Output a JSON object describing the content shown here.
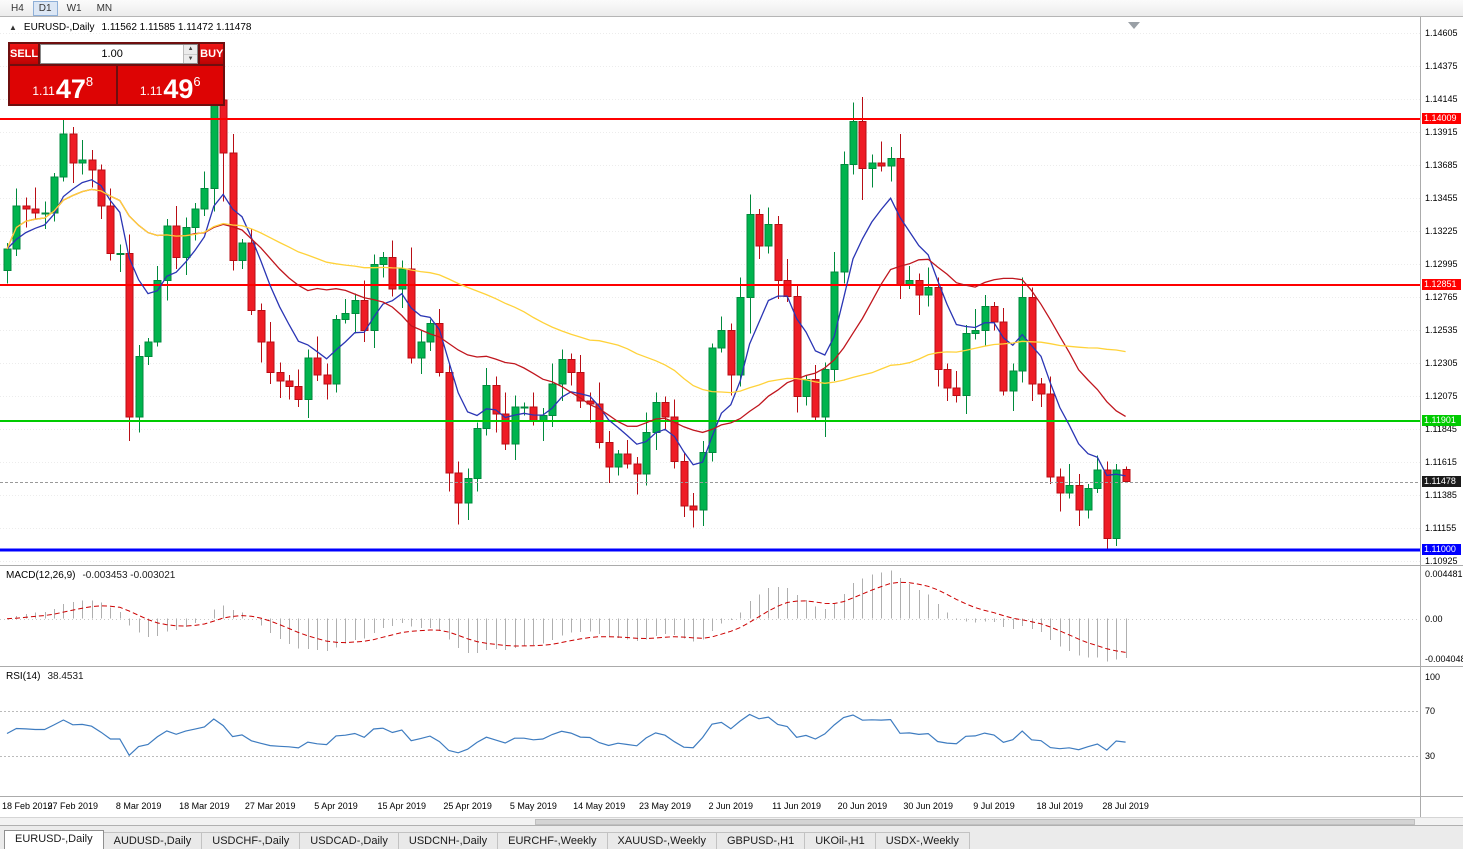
{
  "toolbar": {
    "buttons": [
      "H4",
      "D1",
      "W1",
      "MN"
    ],
    "active": "D1"
  },
  "chart_header": {
    "collapse_icon": "▲",
    "symbol_title": "EURUSD-,Daily",
    "ohlc": "1.11562 1.11585 1.11472 1.11478"
  },
  "one_click": {
    "sell_label": "SELL",
    "buy_label": "BUY",
    "volume": "1.00",
    "spin_up_icon": "▲",
    "spin_down_icon": "▼",
    "sell_price_small": "1.11",
    "sell_price_big": "47",
    "sell_price_sup": "8",
    "buy_price_small": "1.11",
    "buy_price_big": "49",
    "buy_price_sup": "6",
    "down_color": "#DD0404"
  },
  "price_scale": {
    "labels": [
      "1.14605",
      "1.14375",
      "1.14145",
      "1.13915",
      "1.13685",
      "1.13455",
      "1.13225",
      "1.12995",
      "1.12765",
      "1.12535",
      "1.12305",
      "1.12075",
      "1.11845",
      "1.11615",
      "1.11385",
      "1.11155",
      "1.10925"
    ]
  },
  "levels": [
    {
      "label": "1.14009",
      "price": 1.14009,
      "color": "#FF0000",
      "text_color": "#FFFFFF",
      "thickness": 2
    },
    {
      "label": "1.12851",
      "price": 1.12851,
      "color": "#FF0000",
      "text_color": "#FFFFFF",
      "thickness": 2
    },
    {
      "label": "1.11901",
      "price": 1.11901,
      "color": "#00CB00",
      "text_color": "#FFFFFF",
      "thickness": 2
    },
    {
      "label": "1.11000",
      "price": 1.11,
      "color": "#0000FF",
      "text_color": "#FFFFFF",
      "thickness": 3
    }
  ],
  "bid_tag": {
    "label": "1.11478",
    "price": 1.11478,
    "bg": "#1A1A1A",
    "text_color": "#FFFFFF"
  },
  "macd": {
    "name_label": "MACD(12,26,9)",
    "values_label": "-0.003453 -0.003021",
    "scale_top": "0.004481",
    "scale_zero": "0.00",
    "scale_bottom": "-0.004048",
    "histogram_color": "#AFAFAF",
    "signal_color": "#CC0000",
    "fast": 12,
    "slow": 26,
    "signal": 9
  },
  "rsi": {
    "name_label": "RSI(14)",
    "value_label": "38.4531",
    "period": 14,
    "levels_text": [
      "100",
      "70",
      "30"
    ],
    "line_color": "#3E7CC0"
  },
  "tabs": {
    "items": [
      "EURUSD-,Daily",
      "AUDUSD-,Daily",
      "USDCHF-,Daily",
      "USDCAD-,Daily",
      "USDCNH-,Daily",
      "EURCHF-,Weekly",
      "XAUUSD-,Weekly",
      "GBPUSD-,H1",
      "UKOil-,H1",
      "USDX-,Weekly"
    ],
    "active_index": 0
  },
  "chart_data": {
    "type": "candlestick",
    "title": "EURUSD-,Daily",
    "price_max": 1.14717,
    "price_min": 1.10897,
    "bull_color": "#00B44E",
    "bull_border": "#008A3C",
    "bear_color": "#EE1C25",
    "bear_border": "#B80E15",
    "ma_lines": [
      {
        "label": "MA fast",
        "method": "ema",
        "period": 8,
        "color": "#2A35B4"
      },
      {
        "label": "MA medium",
        "method": "sma",
        "period": 20,
        "color": "#C0161E"
      },
      {
        "label": "MA slow",
        "method": "sma",
        "period": 50,
        "color": "#FFD23A"
      }
    ],
    "x_labels": [
      "18 Feb 2019",
      "27 Feb 2019",
      "8 Mar 2019",
      "18 Mar 2019",
      "27 Mar 2019",
      "5 Apr 2019",
      "15 Apr 2019",
      "25 Apr 2019",
      "5 May 2019",
      "14 May 2019",
      "23 May 2019",
      "2 Jun 2019",
      "11 Jun 2019",
      "20 Jun 2019",
      "30 Jun 2019",
      "9 Jul 2019",
      "18 Jul 2019",
      "28 Jul 2019"
    ],
    "x_label_step": 7,
    "candles": [
      [
        1.1295,
        1.1314,
        1.1286,
        1.131
      ],
      [
        1.131,
        1.1352,
        1.1305,
        1.134
      ],
      [
        1.134,
        1.1346,
        1.1325,
        1.1338
      ],
      [
        1.1338,
        1.1353,
        1.1331,
        1.1335
      ],
      [
        1.1335,
        1.1343,
        1.1324,
        1.1335
      ],
      [
        1.1335,
        1.1363,
        1.1329,
        1.136
      ],
      [
        1.136,
        1.14,
        1.1357,
        1.139
      ],
      [
        1.139,
        1.1395,
        1.1356,
        1.137
      ],
      [
        1.137,
        1.1386,
        1.1362,
        1.1372
      ],
      [
        1.1372,
        1.1379,
        1.1353,
        1.1365
      ],
      [
        1.1365,
        1.1369,
        1.1331,
        1.134
      ],
      [
        1.134,
        1.1352,
        1.1302,
        1.1307
      ],
      [
        1.1307,
        1.1313,
        1.1294,
        1.1307
      ],
      [
        1.1307,
        1.132,
        1.1176,
        1.1193
      ],
      [
        1.1193,
        1.1243,
        1.1182,
        1.1235
      ],
      [
        1.1235,
        1.1248,
        1.1229,
        1.1245
      ],
      [
        1.1245,
        1.1298,
        1.1242,
        1.1288
      ],
      [
        1.1288,
        1.1331,
        1.1274,
        1.1326
      ],
      [
        1.1326,
        1.134,
        1.1296,
        1.1304
      ],
      [
        1.1304,
        1.1332,
        1.1292,
        1.1325
      ],
      [
        1.1325,
        1.1342,
        1.1316,
        1.1338
      ],
      [
        1.1338,
        1.1364,
        1.1333,
        1.1352
      ],
      [
        1.1352,
        1.1425,
        1.1336,
        1.1414
      ],
      [
        1.1414,
        1.142,
        1.1343,
        1.1377
      ],
      [
        1.1377,
        1.139,
        1.1295,
        1.1302
      ],
      [
        1.1302,
        1.1317,
        1.1296,
        1.1314
      ],
      [
        1.1314,
        1.1324,
        1.1264,
        1.1267
      ],
      [
        1.1267,
        1.1272,
        1.1231,
        1.1245
      ],
      [
        1.1245,
        1.1259,
        1.1216,
        1.1224
      ],
      [
        1.1224,
        1.1231,
        1.1206,
        1.1218
      ],
      [
        1.1218,
        1.1222,
        1.1205,
        1.1214
      ],
      [
        1.1214,
        1.1226,
        1.12,
        1.1205
      ],
      [
        1.1205,
        1.124,
        1.1192,
        1.1234
      ],
      [
        1.1234,
        1.1249,
        1.1218,
        1.1222
      ],
      [
        1.1222,
        1.123,
        1.1205,
        1.1216
      ],
      [
        1.1216,
        1.1264,
        1.121,
        1.1261
      ],
      [
        1.1261,
        1.1275,
        1.1258,
        1.1265
      ],
      [
        1.1265,
        1.1279,
        1.1251,
        1.1274
      ],
      [
        1.1274,
        1.1288,
        1.1245,
        1.1253
      ],
      [
        1.1253,
        1.1306,
        1.1241,
        1.1299
      ],
      [
        1.1299,
        1.1308,
        1.129,
        1.1304
      ],
      [
        1.1304,
        1.1316,
        1.1277,
        1.1282
      ],
      [
        1.1282,
        1.1302,
        1.1269,
        1.1296
      ],
      [
        1.1296,
        1.1311,
        1.123,
        1.1234
      ],
      [
        1.1234,
        1.1253,
        1.1223,
        1.1245
      ],
      [
        1.1245,
        1.1261,
        1.1239,
        1.1258
      ],
      [
        1.1258,
        1.1268,
        1.1221,
        1.1224
      ],
      [
        1.1224,
        1.123,
        1.1141,
        1.1154
      ],
      [
        1.1154,
        1.1162,
        1.1118,
        1.1133
      ],
      [
        1.1133,
        1.1157,
        1.1121,
        1.115
      ],
      [
        1.115,
        1.1189,
        1.1141,
        1.1185
      ],
      [
        1.1185,
        1.1227,
        1.118,
        1.1215
      ],
      [
        1.1215,
        1.1221,
        1.1182,
        1.1195
      ],
      [
        1.1195,
        1.121,
        1.117,
        1.1174
      ],
      [
        1.1174,
        1.1208,
        1.1163,
        1.12
      ],
      [
        1.12,
        1.1203,
        1.1194,
        1.12
      ],
      [
        1.12,
        1.121,
        1.1187,
        1.119
      ],
      [
        1.119,
        1.1199,
        1.1176,
        1.1194
      ],
      [
        1.1194,
        1.123,
        1.1186,
        1.1216
      ],
      [
        1.1216,
        1.124,
        1.1204,
        1.1233
      ],
      [
        1.1233,
        1.1237,
        1.1215,
        1.1224
      ],
      [
        1.1224,
        1.1236,
        1.1199,
        1.1204
      ],
      [
        1.1204,
        1.121,
        1.1189,
        1.1202
      ],
      [
        1.1202,
        1.1217,
        1.1171,
        1.1175
      ],
      [
        1.1175,
        1.1183,
        1.1147,
        1.1158
      ],
      [
        1.1158,
        1.117,
        1.1152,
        1.1167
      ],
      [
        1.1167,
        1.1177,
        1.1157,
        1.116
      ],
      [
        1.116,
        1.1165,
        1.1139,
        1.1153
      ],
      [
        1.1153,
        1.1196,
        1.1145,
        1.1182
      ],
      [
        1.1182,
        1.121,
        1.117,
        1.1203
      ],
      [
        1.1203,
        1.1207,
        1.1184,
        1.1193
      ],
      [
        1.1193,
        1.1205,
        1.1157,
        1.1162
      ],
      [
        1.1162,
        1.1168,
        1.1123,
        1.1131
      ],
      [
        1.1131,
        1.114,
        1.1116,
        1.1128
      ],
      [
        1.1128,
        1.1176,
        1.1117,
        1.1168
      ],
      [
        1.1168,
        1.1244,
        1.1162,
        1.1241
      ],
      [
        1.1241,
        1.1263,
        1.1238,
        1.1253
      ],
      [
        1.1253,
        1.1258,
        1.1208,
        1.1222
      ],
      [
        1.1222,
        1.129,
        1.1214,
        1.1276
      ],
      [
        1.1276,
        1.1348,
        1.1251,
        1.1334
      ],
      [
        1.1334,
        1.1338,
        1.1303,
        1.1312
      ],
      [
        1.1312,
        1.1339,
        1.1307,
        1.1327
      ],
      [
        1.1327,
        1.1333,
        1.1275,
        1.1288
      ],
      [
        1.1288,
        1.1303,
        1.1273,
        1.1277
      ],
      [
        1.1277,
        1.1285,
        1.1196,
        1.1207
      ],
      [
        1.1207,
        1.1222,
        1.1201,
        1.1219
      ],
      [
        1.1219,
        1.1229,
        1.119,
        1.1193
      ],
      [
        1.1193,
        1.1231,
        1.1179,
        1.1226
      ],
      [
        1.1226,
        1.1308,
        1.1218,
        1.1294
      ],
      [
        1.1294,
        1.1378,
        1.1286,
        1.1369
      ],
      [
        1.1369,
        1.1412,
        1.1362,
        1.1399
      ],
      [
        1.1399,
        1.1416,
        1.1344,
        1.1366
      ],
      [
        1.1366,
        1.1376,
        1.1353,
        1.137
      ],
      [
        1.137,
        1.1385,
        1.1364,
        1.1368
      ],
      [
        1.1368,
        1.1381,
        1.1357,
        1.1373
      ],
      [
        1.1373,
        1.139,
        1.1275,
        1.1285
      ],
      [
        1.1285,
        1.1298,
        1.1282,
        1.1288
      ],
      [
        1.1288,
        1.1293,
        1.1264,
        1.1278
      ],
      [
        1.1278,
        1.1297,
        1.127,
        1.1283
      ],
      [
        1.1283,
        1.129,
        1.1214,
        1.1226
      ],
      [
        1.1226,
        1.123,
        1.1204,
        1.1213
      ],
      [
        1.1213,
        1.1225,
        1.1203,
        1.1208
      ],
      [
        1.1208,
        1.1257,
        1.1195,
        1.1251
      ],
      [
        1.1251,
        1.1268,
        1.1247,
        1.1253
      ],
      [
        1.1253,
        1.1278,
        1.1242,
        1.127
      ],
      [
        1.127,
        1.1273,
        1.1253,
        1.1259
      ],
      [
        1.1259,
        1.1269,
        1.1208,
        1.1211
      ],
      [
        1.1211,
        1.123,
        1.1197,
        1.1225
      ],
      [
        1.1225,
        1.129,
        1.1217,
        1.1276
      ],
      [
        1.1276,
        1.1283,
        1.1204,
        1.1216
      ],
      [
        1.1216,
        1.122,
        1.12,
        1.1209
      ],
      [
        1.1209,
        1.1221,
        1.1146,
        1.1151
      ],
      [
        1.1151,
        1.1157,
        1.1127,
        1.114
      ],
      [
        1.114,
        1.116,
        1.1136,
        1.1145
      ],
      [
        1.1145,
        1.1153,
        1.1117,
        1.1128
      ],
      [
        1.1128,
        1.1146,
        1.1122,
        1.1143
      ],
      [
        1.1143,
        1.1166,
        1.114,
        1.1156
      ],
      [
        1.1156,
        1.1162,
        1.1101,
        1.1108
      ],
      [
        1.1108,
        1.116,
        1.1103,
        1.1156
      ],
      [
        1.11562,
        1.11585,
        1.11472,
        1.11478
      ]
    ]
  }
}
